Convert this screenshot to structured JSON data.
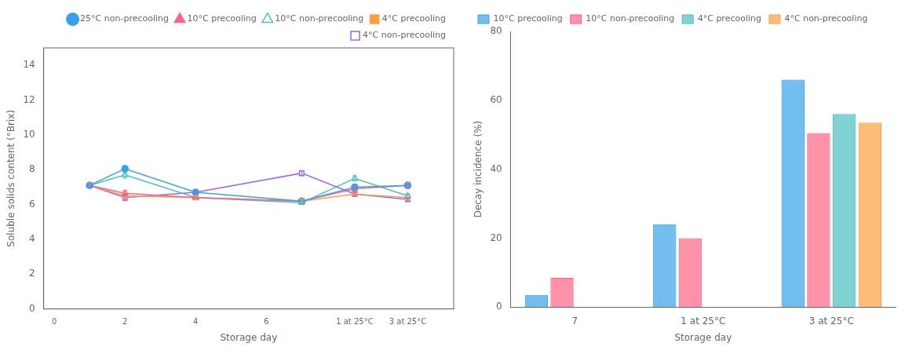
{
  "chart_data": [
    {
      "type": "line",
      "xlabel": "Storage day",
      "ylabel": "Soluble solids content (°Brix)",
      "x": [
        1,
        2,
        4,
        7,
        8.5,
        10.0
      ],
      "xlim": [
        -0.3,
        11.3
      ],
      "xticks": [
        0,
        2,
        4,
        6,
        {
          "value": 8.5,
          "label": "1 at 25°C"
        },
        {
          "value": 10.0,
          "label": "3 at 25°C"
        }
      ],
      "ylim": [
        0,
        15
      ],
      "yticks": [
        0,
        2,
        4,
        6,
        8,
        10,
        12,
        14
      ],
      "grid": false,
      "legend": "upper right",
      "series": [
        {
          "name": "25°C non-precooling",
          "marker": "circle",
          "values": [
            7.1,
            8.05,
            6.7,
            6.2,
            7.0,
            7.1
          ],
          "errors": [
            0.15,
            0.18,
            0.12,
            0.1,
            0.15,
            0.18
          ]
        },
        {
          "name": "10°C precooling",
          "marker": "triangle",
          "values": [
            7.1,
            6.65,
            6.4,
            6.2,
            6.9,
            7.1
          ],
          "errors": [
            0.15,
            0.15,
            0.12,
            0.1,
            0.12,
            0.15
          ]
        },
        {
          "name": "10°C non-precooling",
          "marker": "triangle-open",
          "values": [
            7.1,
            7.7,
            6.4,
            6.1,
            7.5,
            6.5
          ],
          "errors": [
            0.15,
            0.18,
            0.12,
            0.1,
            0.15,
            0.12
          ]
        },
        {
          "name": "4°C precooling",
          "marker": "square",
          "values": [
            7.1,
            6.5,
            6.4,
            6.2,
            6.6,
            6.4
          ],
          "errors": [
            0.15,
            0.2,
            0.12,
            0.1,
            0.12,
            0.12
          ]
        },
        {
          "name": "4°C non-precooling",
          "marker": "square-open",
          "values": [
            7.1,
            6.4,
            6.7,
            7.8,
            6.6,
            6.3
          ],
          "errors": [
            0.15,
            0.18,
            0.12,
            0.15,
            0.12,
            0.1
          ]
        }
      ]
    },
    {
      "type": "bar",
      "xlabel": "Storage day",
      "ylabel": "Decay incidence (%)",
      "categories": [
        "7",
        "1 at 25°C",
        "3 at 25°C"
      ],
      "ylim": [
        0,
        80
      ],
      "yticks": [
        0,
        20,
        40,
        60,
        80
      ],
      "grid": false,
      "legend": "upper left",
      "series": [
        {
          "name": "10°C precooling",
          "values": [
            3.5,
            24.0,
            66.0
          ]
        },
        {
          "name": "10°C non-precooling",
          "values": [
            8.5,
            20.0,
            50.5
          ]
        },
        {
          "name": "4°C precooling",
          "values": [
            0.0,
            0.0,
            56.0
          ]
        },
        {
          "name": "4°C non-precooling",
          "values": [
            0.0,
            0.0,
            53.5
          ]
        }
      ]
    }
  ]
}
